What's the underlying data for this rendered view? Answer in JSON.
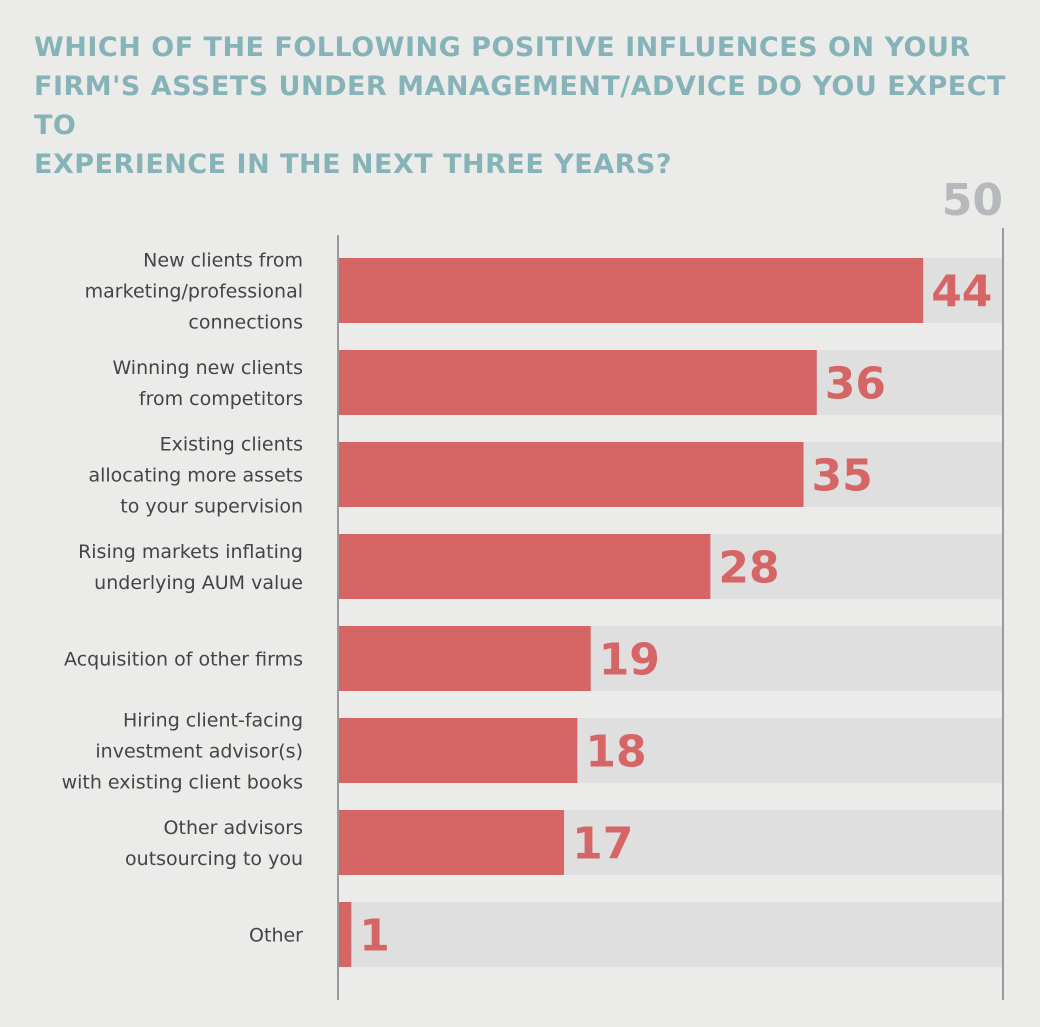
{
  "chart_data": {
    "type": "bar",
    "orientation": "horizontal",
    "title": "WHICH OF THE FOLLOWING POSITIVE INFLUENCES ON YOUR\nFIRM'S ASSETS UNDER MANAGEMENT/ADVICE DO YOU EXPECT TO\nEXPERIENCE IN THE NEXT THREE YEARS?",
    "max_label": "50",
    "xlim": [
      0,
      50
    ],
    "categories": [
      "New clients from\nmarketing/professional\nconnections",
      "Winning new clients\nfrom competitors",
      "Existing clients\nallocating more assets\nto your supervision",
      "Rising markets inflating\nunderlying AUM value",
      "Acquisition of other firms",
      "Hiring client-facing\ninvestment advisor(s)\nwith existing client books",
      "Other advisors\noutsourcing to you",
      "Other"
    ],
    "values": [
      44,
      36,
      35,
      28,
      19,
      18,
      17,
      1
    ],
    "grid": false,
    "colors": {
      "bar": "#d66666",
      "track": "#dfdfdf",
      "title": "#86b3b8",
      "max_label": "#b5b9bb",
      "axis": "#9a9a9a",
      "background": "#ebebea"
    }
  }
}
